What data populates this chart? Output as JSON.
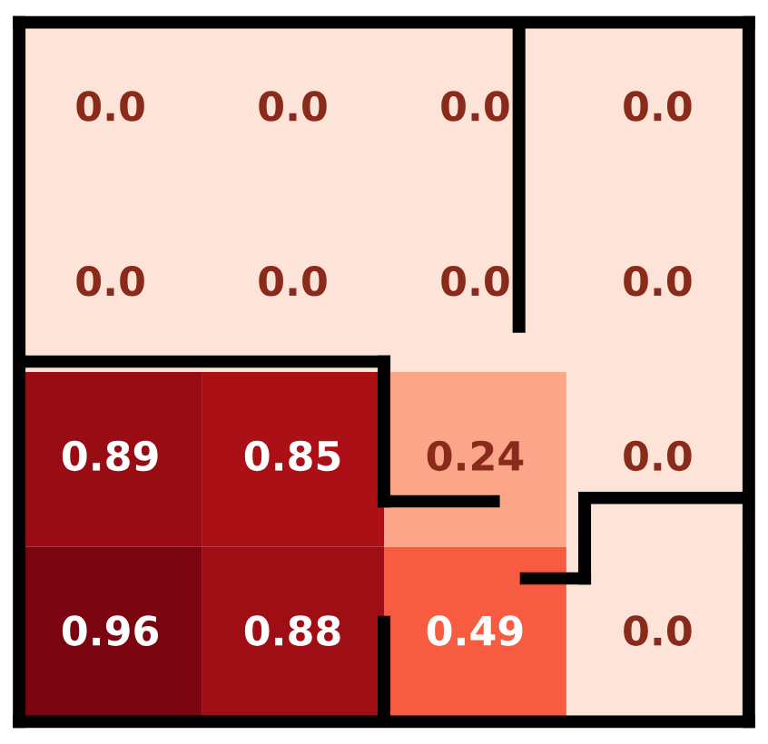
{
  "chart_data": {
    "type": "heatmap",
    "categories": [
      null,
      null,
      null,
      null
    ],
    "y_categories": [
      null,
      null,
      null,
      null
    ],
    "cells": [
      [
        0,
        0,
        0,
        0
      ],
      [
        0,
        0,
        0,
        0
      ],
      [
        0.89,
        0.85,
        0.24,
        0
      ],
      [
        0.96,
        0.88,
        0.49,
        0
      ]
    ],
    "cell_labels": [
      [
        "0.0",
        "0.0",
        "0.0",
        "0.0"
      ],
      [
        "0.0",
        "0.0",
        "0.0",
        "0.0"
      ],
      [
        "0.89",
        "0.85",
        "0.24",
        "0.0"
      ],
      [
        "0.96",
        "0.88",
        "0.49",
        "0.0"
      ]
    ],
    "tick_labels": false
  }
}
